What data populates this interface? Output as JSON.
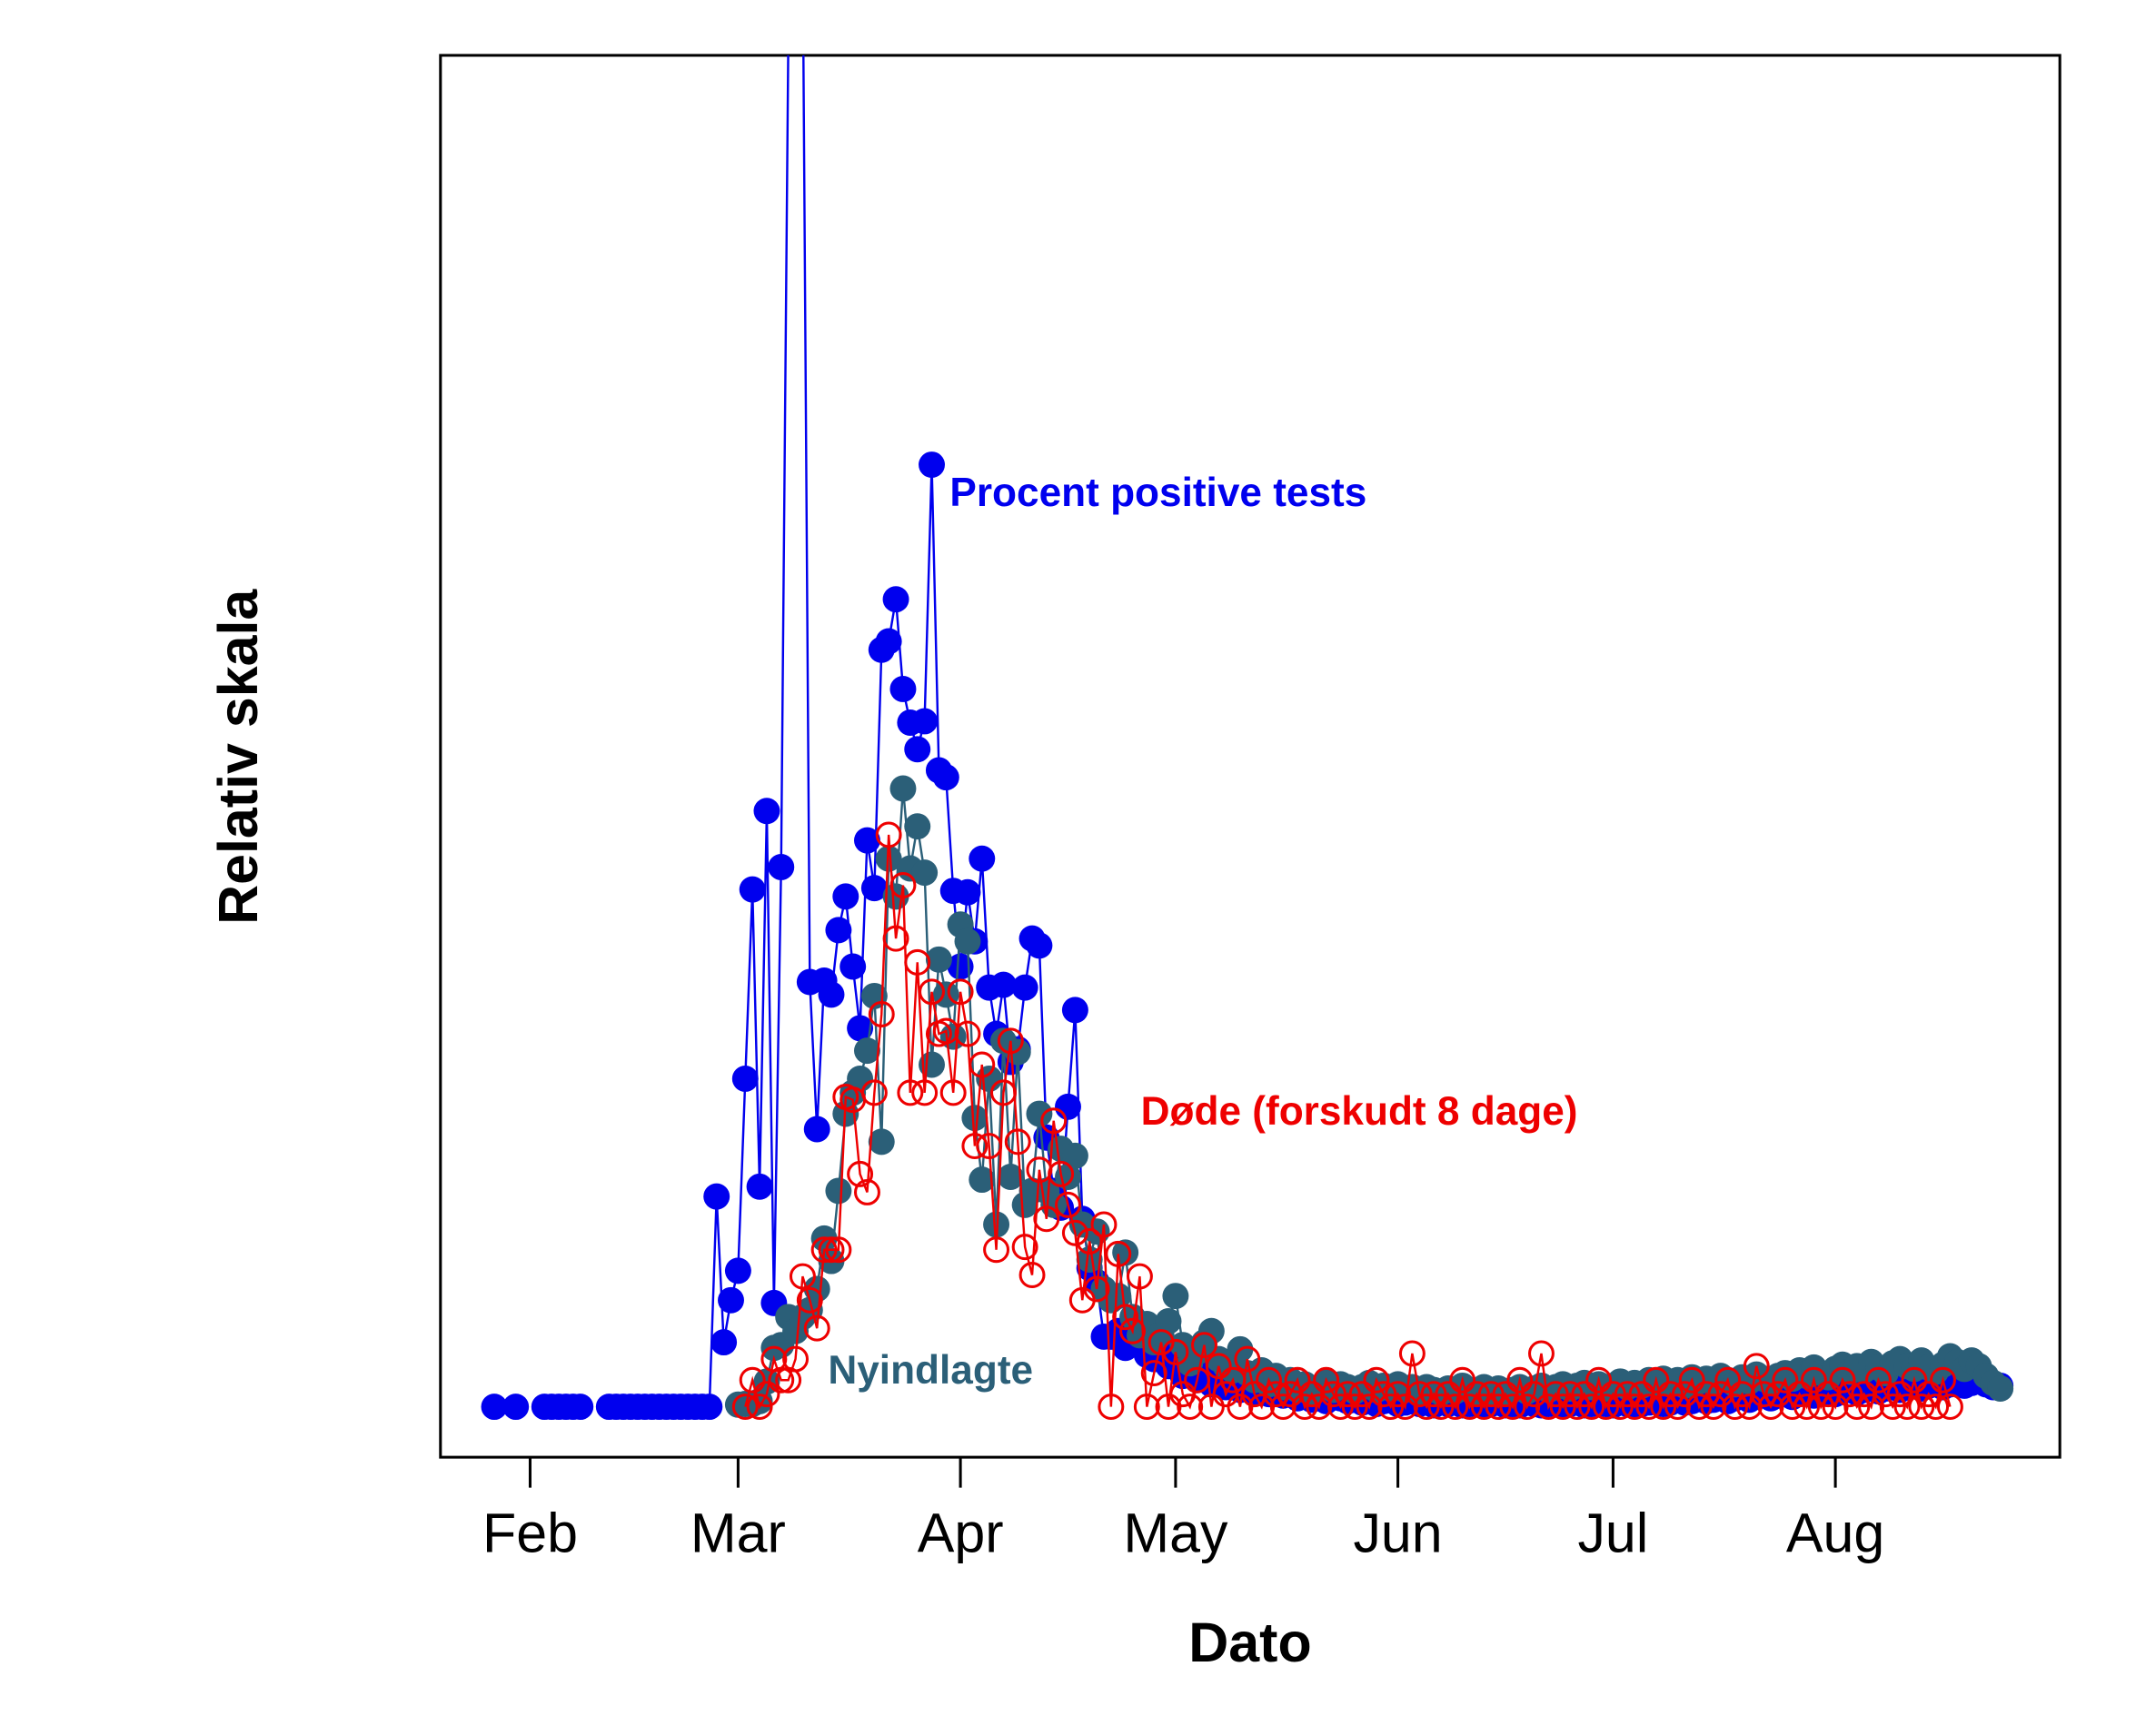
{
  "chart_data": {
    "type": "line",
    "xlabel": "Dato",
    "ylabel": "Relativ skala",
    "xlim": [
      19.5,
      245.3
    ],
    "ylim": [
      0,
      100
    ],
    "xticks": [
      {
        "value": 32,
        "label": "Feb"
      },
      {
        "value": 61,
        "label": "Mar"
      },
      {
        "value": 92,
        "label": "Apr"
      },
      {
        "value": 122,
        "label": "May"
      },
      {
        "value": 153,
        "label": "Jun"
      },
      {
        "value": 183,
        "label": "Jul"
      },
      {
        "value": 214,
        "label": "Aug"
      }
    ],
    "x": [
      27,
      28,
      29,
      30,
      31,
      32,
      33,
      34,
      35,
      36,
      37,
      38,
      39,
      40,
      41,
      42,
      43,
      44,
      45,
      46,
      47,
      48,
      49,
      50,
      51,
      52,
      53,
      54,
      55,
      56,
      57,
      58,
      59,
      60,
      61,
      62,
      63,
      64,
      65,
      66,
      67,
      68,
      69,
      70,
      71,
      72,
      73,
      74,
      75,
      76,
      77,
      78,
      79,
      80,
      81,
      82,
      83,
      84,
      85,
      86,
      87,
      88,
      89,
      90,
      91,
      92,
      93,
      94,
      95,
      96,
      97,
      98,
      99,
      100,
      101,
      102,
      103,
      104,
      105,
      106,
      107,
      108,
      109,
      110,
      111,
      112,
      113,
      114,
      115,
      116,
      117,
      118,
      119,
      120,
      121,
      122,
      123,
      124,
      125,
      126,
      127,
      128,
      129,
      130,
      131,
      132,
      133,
      134,
      135,
      136,
      137,
      138,
      139,
      140,
      141,
      142,
      143,
      144,
      145,
      146,
      147,
      148,
      149,
      150,
      151,
      152,
      153,
      154,
      155,
      156,
      157,
      158,
      159,
      160,
      161,
      162,
      163,
      164,
      165,
      166,
      167,
      168,
      169,
      170,
      171,
      172,
      173,
      174,
      175,
      176,
      177,
      178,
      179,
      180,
      181,
      182,
      183,
      184,
      185,
      186,
      187,
      188,
      189,
      190,
      191,
      192,
      193,
      194,
      195,
      196,
      197,
      198,
      199,
      200,
      201,
      202,
      203,
      204,
      205,
      206,
      207,
      208,
      209,
      210,
      211,
      212,
      213,
      214,
      215,
      216,
      217,
      218,
      219,
      220,
      221,
      222,
      223,
      224,
      225,
      226,
      227,
      228,
      229,
      230,
      231,
      232,
      233,
      234,
      235,
      236,
      237
    ],
    "series": [
      {
        "name": "Procent positive tests",
        "color": "#0000ee",
        "marker": "filled",
        "values": [
          3.6,
          null,
          null,
          3.6,
          null,
          null,
          null,
          3.6,
          3.6,
          3.6,
          3.6,
          3.6,
          3.6,
          null,
          null,
          null,
          3.6,
          3.6,
          3.6,
          3.6,
          3.6,
          3.6,
          3.6,
          3.6,
          3.6,
          3.6,
          3.6,
          3.6,
          3.6,
          3.6,
          3.6,
          18.6,
          8.2,
          11.2,
          13.3,
          27.0,
          40.5,
          19.3,
          46.1,
          11.0,
          42.1,
          101,
          110,
          108,
          33.9,
          23.4,
          34,
          33,
          37.6,
          40,
          35,
          30.6,
          44,
          40.6,
          57.6,
          58.2,
          61.2,
          54.8,
          52.4,
          50.5,
          52.5,
          70.8,
          49,
          48.5,
          40.4,
          35,
          40.3,
          36.8,
          42.7,
          33.5,
          30.2,
          33.7,
          28.2,
          29.1,
          33.5,
          37,
          36.5,
          22.8,
          19,
          17.8,
          25,
          31.9,
          17,
          13.5,
          12.5,
          8.6,
          8.6,
          9,
          7.8,
          8.3,
          9.5,
          7.3,
          7.0,
          7.8,
          6.5,
          6.8,
          5.8,
          6.2,
          5.5,
          6,
          5.2,
          5.5,
          5,
          5.3,
          4.8,
          5.5,
          4.6,
          5,
          4.5,
          4.8,
          4.4,
          4.6,
          4.2,
          4.5,
          4.1,
          4.3,
          4,
          4.4,
          4.2,
          4,
          4.1,
          3.9,
          4.2,
          3.8,
          4,
          4.1,
          3.8,
          3.9,
          4,
          3.8,
          3.9,
          3.7,
          4,
          3.8,
          3.9,
          3.7,
          3.8,
          4,
          3.7,
          3.8,
          3.9,
          3.7,
          3.8,
          3.7,
          3.9,
          3.8,
          3.7,
          3.8,
          4,
          3.7,
          3.8,
          3.9,
          3.7,
          3.8,
          4,
          3.8,
          3.7,
          3.9,
          3.8,
          3.7,
          3.8,
          3.9,
          4,
          3.8,
          3.9,
          4.1,
          3.9,
          4,
          4.2,
          4,
          4.1,
          4.3,
          4,
          4.2,
          4.4,
          4.1,
          4.3,
          4.5,
          4.2,
          4.4,
          4.6,
          4.3,
          4.5,
          4.7,
          4.4,
          4.6,
          4.8,
          4.5,
          4.7,
          4.9,
          4.6,
          4.8,
          5,
          4.7,
          4.9,
          5.1,
          4.8,
          5,
          5.2,
          4.9,
          5.1,
          5.3,
          5,
          5.2,
          5.4,
          5.1,
          5.3,
          5.5,
          5.2,
          5,
          5.1
        ]
      },
      {
        "name": "Nyindlagte",
        "color": "#2b5f78",
        "marker": "filled",
        "values": [
          null,
          null,
          null,
          null,
          null,
          null,
          null,
          null,
          null,
          null,
          null,
          null,
          null,
          null,
          null,
          null,
          null,
          null,
          null,
          null,
          null,
          null,
          null,
          null,
          null,
          null,
          null,
          null,
          null,
          null,
          null,
          null,
          null,
          null,
          3.75,
          3.8,
          3.8,
          4.0,
          5.4,
          7.8,
          8.0,
          10,
          9,
          10,
          10.5,
          12,
          15.6,
          14,
          19,
          24.5,
          26,
          27,
          29,
          32.9,
          22.5,
          42.7,
          40,
          47.7,
          42,
          45,
          41.7,
          28,
          35.5,
          33,
          30,
          38,
          36.8,
          24.2,
          19.8,
          27,
          16.6,
          29.7,
          20,
          28.9,
          18,
          19,
          24.5,
          19,
          18,
          22,
          20,
          21.5,
          16.6,
          14.1,
          16.1,
          12,
          11.2,
          11.5,
          14.6,
          10,
          8.7,
          9.5,
          8.2,
          8.8,
          9.7,
          11.5,
          8,
          6.7,
          7.5,
          8.2,
          9,
          7,
          6.5,
          6.2,
          7.7,
          6,
          5.5,
          6.2,
          5.2,
          5.8,
          5,
          5.5,
          4.8,
          5.2,
          4.6,
          5,
          5.4,
          4.8,
          5.2,
          5,
          4.7,
          5,
          5.3,
          4.8,
          5.1,
          4.9,
          5.2,
          4.8,
          5,
          4.7,
          5,
          4.8,
          4.6,
          4.9,
          4.7,
          5.1,
          4.8,
          4.6,
          5,
          4.7,
          4.9,
          4.6,
          4.8,
          5,
          4.7,
          4.9,
          5.1,
          4.8,
          5,
          5.2,
          4.9,
          5.1,
          5.3,
          5,
          5.2,
          4.9,
          5.1,
          5.4,
          5,
          5.3,
          5.1,
          5.5,
          5.2,
          5.6,
          5.3,
          5.5,
          5.1,
          5.7,
          5.4,
          5.6,
          5.3,
          5.8,
          5.5,
          5.2,
          5.7,
          5.4,
          5.9,
          5.6,
          5.3,
          5.8,
          6,
          5.6,
          6.2,
          5.8,
          6.4,
          6,
          5.7,
          6.3,
          6.6,
          6.1,
          6.5,
          6.2,
          6.8,
          6.4,
          6,
          6.7,
          7,
          6.5,
          6.3,
          6.9,
          6.4,
          6.1,
          6.6,
          7.2,
          6.8,
          6.3,
          6.9,
          6.5,
          5.8,
          5.3,
          4.9
        ]
      },
      {
        "name": "Døde (forskudt 8 dage)",
        "color": "#ee0000",
        "marker": "open",
        "values": [
          null,
          null,
          null,
          null,
          null,
          null,
          null,
          null,
          null,
          null,
          null,
          null,
          null,
          null,
          null,
          null,
          null,
          null,
          null,
          null,
          null,
          null,
          null,
          null,
          null,
          null,
          null,
          null,
          null,
          null,
          null,
          null,
          null,
          null,
          null,
          3.6,
          5.5,
          3.6,
          4.5,
          7,
          5.5,
          5.5,
          7,
          12.9,
          11.2,
          9.2,
          14.8,
          14.8,
          14.8,
          25.7,
          25.5,
          20.2,
          18.9,
          26,
          31.6,
          44.4,
          37,
          40.8,
          26,
          35.3,
          26,
          33.2,
          30.2,
          30.4,
          26,
          33.2,
          30.2,
          22.2,
          28,
          22.2,
          14.8,
          26,
          29.7,
          22.5,
          15,
          13,
          20.5,
          17,
          24,
          20.2,
          18,
          16,
          11.2,
          15.4,
          12,
          16.6,
          3.6,
          14.5,
          10,
          9,
          12.9,
          3.6,
          6,
          8.2,
          3.6,
          7.5,
          4.5,
          3.6,
          5.5,
          8,
          3.6,
          6.5,
          4.5,
          5.5,
          3.6,
          7,
          4.5,
          3.6,
          5.5,
          4.5,
          3.6,
          4.5,
          5.5,
          3.6,
          4.5,
          3.6,
          5.5,
          4.5,
          3.6,
          4.5,
          3.6,
          4.5,
          3.6,
          5.5,
          4.5,
          3.6,
          4.5,
          3.6,
          7.4,
          4.5,
          3.6,
          4.5,
          3.6,
          4.5,
          3.6,
          5.5,
          3.6,
          4.5,
          3.6,
          4.5,
          3.6,
          4.5,
          3.6,
          5.5,
          3.6,
          4.5,
          7.4,
          3.6,
          4.5,
          3.6,
          4.5,
          3.6,
          4.5,
          3.6,
          5.5,
          3.6,
          4.5,
          3.6,
          4.5,
          3.6,
          4.5,
          3.6,
          5.5,
          3.6,
          4.5,
          3.6,
          4.5,
          5.5,
          3.6,
          4.5,
          3.6,
          4.5,
          5.5,
          3.6,
          4.5,
          3.6,
          6.5,
          4.5,
          3.6,
          4.5,
          5.5,
          3.6,
          4.5,
          3.6,
          5.5,
          3.6,
          4.5,
          3.6,
          5.5,
          4.5,
          3.6,
          4.5,
          3.6,
          5.5,
          4.5,
          3.6,
          4.5,
          3.6,
          5.5,
          3.6,
          4.5,
          3.6,
          5.5,
          3.6,
          null,
          null,
          null,
          null,
          null,
          null,
          null
        ]
      }
    ]
  }
}
